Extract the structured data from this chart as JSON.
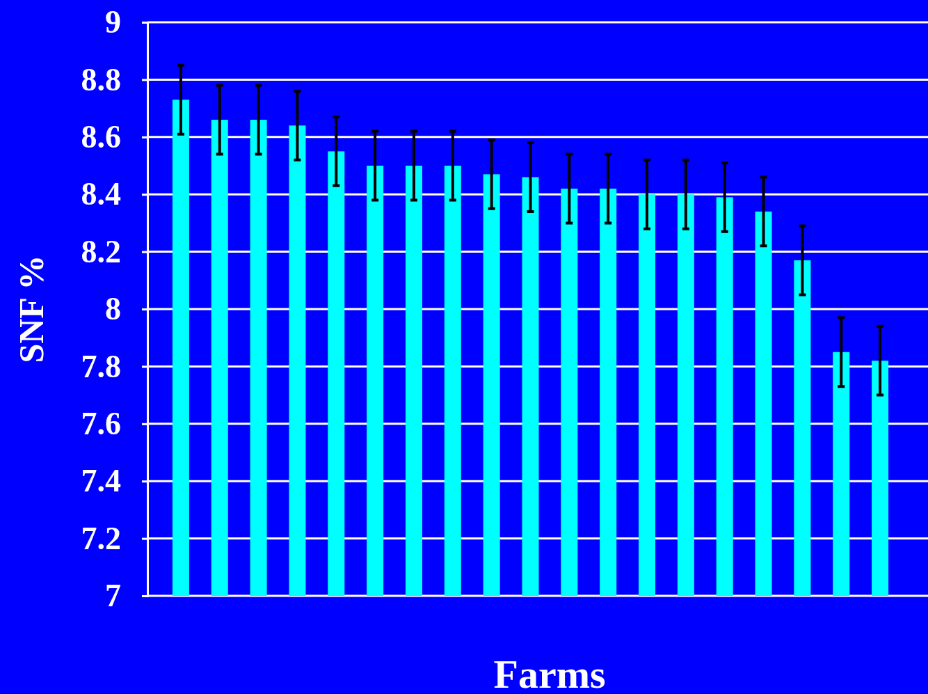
{
  "chart_data": {
    "type": "bar",
    "xlabel": "Farms",
    "ylabel": "SNF %",
    "categories": [
      null,
      null,
      null,
      null,
      null,
      null,
      null,
      null,
      null,
      null,
      null,
      null,
      null,
      null,
      null,
      null,
      null,
      null,
      null
    ],
    "values": [
      8.73,
      8.66,
      8.66,
      8.64,
      8.55,
      8.5,
      8.5,
      8.5,
      8.47,
      8.46,
      8.42,
      8.42,
      8.4,
      8.4,
      8.39,
      8.34,
      8.17,
      7.85,
      7.82
    ],
    "errors": [
      0.12,
      0.12,
      0.12,
      0.12,
      0.12,
      0.12,
      0.12,
      0.12,
      0.12,
      0.12,
      0.12,
      0.12,
      0.12,
      0.12,
      0.12,
      0.12,
      0.12,
      0.12,
      0.12
    ],
    "color": "#00ffff",
    "ylim": [
      7,
      9
    ],
    "yticks": [
      7,
      7.2,
      7.4,
      7.6,
      7.8,
      8,
      8.2,
      8.4,
      8.6,
      8.8,
      9
    ],
    "grid": "y"
  }
}
